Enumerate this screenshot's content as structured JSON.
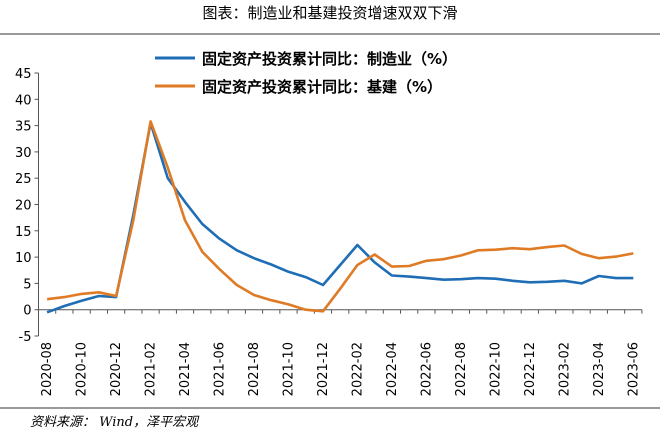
{
  "chart_data": {
    "type": "line",
    "title": "图表：制造业和基建投资增速双双下滑",
    "source": "资料来源： Wind，泽平宏观",
    "categories": [
      "2020-08",
      null,
      "2020-10",
      null,
      "2020-12",
      null,
      "2021-02",
      null,
      "2021-04",
      null,
      "2021-06",
      null,
      "2021-08",
      null,
      "2021-10",
      null,
      "2021-12",
      null,
      "2022-02",
      null,
      "2022-04",
      null,
      "2022-06",
      null,
      "2022-08",
      null,
      "2022-10",
      null,
      "2022-12",
      null,
      "2023-02",
      null,
      "2023-04",
      null,
      "2023-06"
    ],
    "series": [
      {
        "name": "固定资产投资累计同比：制造业（%）",
        "color": "#1f6eb5",
        "values": [
          -0.5,
          0.7,
          1.7,
          2.6,
          2.4,
          18,
          35.5,
          25,
          20.5,
          16.3,
          13.5,
          11.3,
          9.8,
          8.6,
          7.2,
          6.2,
          4.7,
          8.5,
          12.3,
          9,
          6.5,
          6.3,
          6,
          5.7,
          5.8,
          6,
          5.9,
          5.5,
          5.2,
          5.3,
          5.5,
          5,
          6.4,
          6,
          6
        ]
      },
      {
        "name": "固定资产投资累计同比：基建（%）",
        "color": "#e07b25",
        "values": [
          2,
          2.4,
          3,
          3.3,
          2.6,
          17,
          35.8,
          27,
          17,
          11,
          7.7,
          4.7,
          2.8,
          1.8,
          1,
          0,
          -0.3,
          4,
          8.5,
          10.5,
          8.2,
          8.3,
          9.3,
          9.6,
          10.3,
          11.3,
          11.4,
          11.7,
          11.5,
          11.9,
          12.2,
          10.6,
          9.8,
          10.1,
          10.7
        ]
      }
    ],
    "ylim": [
      -5,
      45
    ],
    "yticks": [
      -5,
      0,
      5,
      10,
      15,
      20,
      25,
      30,
      35,
      40,
      45
    ],
    "legend": "top",
    "grid": false
  }
}
